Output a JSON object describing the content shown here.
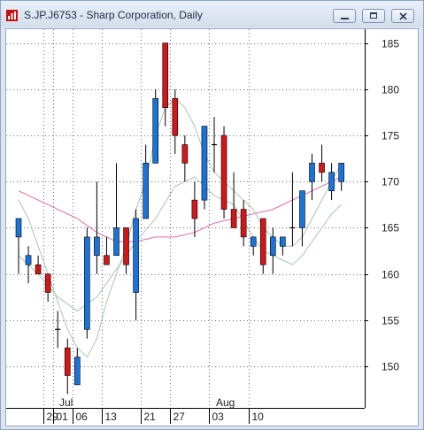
{
  "window": {
    "title": "S.JP.J6753 - Sharp Corporation, Daily",
    "controls": {
      "minimize": "minimize-icon",
      "restore": "restore-icon",
      "close": "close-icon"
    }
  },
  "colors": {
    "up": "#1a73d9",
    "down": "#d01818",
    "ma_short": "#a8c8b0",
    "ma_long": "#e06aa8"
  },
  "chart_data": {
    "type": "candlestick",
    "y_ticks": [
      150,
      155,
      160,
      165,
      170,
      175,
      180,
      185
    ],
    "ylim": [
      145.5,
      186.5
    ],
    "x_tick_labels": [
      "29",
      "01",
      "06",
      "13",
      "21",
      "27",
      "03",
      "10"
    ],
    "x_tick_indices": [
      3,
      4,
      6,
      9,
      13,
      16,
      20,
      24
    ],
    "month_labels": [
      {
        "label": "Jul",
        "index": 5
      },
      {
        "label": "Aug",
        "index": 21
      }
    ],
    "candles": [
      {
        "open": 164.0,
        "high": 166.0,
        "low": 160.0,
        "close": 166.0
      },
      {
        "open": 161.0,
        "high": 163.0,
        "low": 159.0,
        "close": 162.0
      },
      {
        "open": 161.0,
        "high": 162.0,
        "low": 160.0,
        "close": 160.0
      },
      {
        "open": 160.0,
        "high": 160.0,
        "low": 157.0,
        "close": 158.0
      },
      {
        "open": 154.0,
        "high": 156.0,
        "low": 152.0,
        "close": 154.0
      },
      {
        "open": 152.0,
        "high": 153.0,
        "low": 147.0,
        "close": 149.0
      },
      {
        "open": 148.0,
        "high": 152.0,
        "low": 148.0,
        "close": 151.0
      },
      {
        "open": 154.0,
        "high": 165.0,
        "low": 153.0,
        "close": 164.0
      },
      {
        "open": 162.0,
        "high": 170.0,
        "low": 160.0,
        "close": 164.0
      },
      {
        "open": 162.0,
        "high": 164.0,
        "low": 161.0,
        "close": 161.0
      },
      {
        "open": 162.0,
        "high": 172.0,
        "low": 162.0,
        "close": 165.0
      },
      {
        "open": 165.0,
        "high": 165.0,
        "low": 160.0,
        "close": 161.0
      },
      {
        "open": 158.0,
        "high": 167.0,
        "low": 155.0,
        "close": 166.0
      },
      {
        "open": 166.0,
        "high": 174.0,
        "low": 166.0,
        "close": 172.0
      },
      {
        "open": 172.0,
        "high": 180.0,
        "low": 172.0,
        "close": 179.0
      },
      {
        "open": 185.0,
        "high": 185.0,
        "low": 176.0,
        "close": 178.0
      },
      {
        "open": 179.0,
        "high": 180.0,
        "low": 173.0,
        "close": 175.0
      },
      {
        "open": 174.0,
        "high": 175.0,
        "low": 170.0,
        "close": 172.0
      },
      {
        "open": 168.0,
        "high": 170.0,
        "low": 164.0,
        "close": 166.0
      },
      {
        "open": 168.0,
        "high": 176.0,
        "low": 167.0,
        "close": 176.0
      },
      {
        "open": 174.0,
        "high": 177.0,
        "low": 171.0,
        "close": 174.0
      },
      {
        "open": 175.0,
        "high": 176.0,
        "low": 166.0,
        "close": 167.0
      },
      {
        "open": 167.0,
        "high": 171.0,
        "low": 165.0,
        "close": 165.0
      },
      {
        "open": 167.0,
        "high": 168.0,
        "low": 163.0,
        "close": 164.0
      },
      {
        "open": 163.0,
        "high": 164.0,
        "low": 162.0,
        "close": 164.0
      },
      {
        "open": 166.0,
        "high": 166.0,
        "low": 160.0,
        "close": 161.0
      },
      {
        "open": 162.0,
        "high": 165.0,
        "low": 160.0,
        "close": 164.0
      },
      {
        "open": 163.0,
        "high": 164.0,
        "low": 162.0,
        "close": 164.0
      },
      {
        "open": 165.0,
        "high": 171.0,
        "low": 163.0,
        "close": 165.0
      },
      {
        "open": 165.0,
        "high": 169.0,
        "low": 163.0,
        "close": 169.0
      },
      {
        "open": 170.0,
        "high": 173.0,
        "low": 168.0,
        "close": 172.0
      },
      {
        "open": 172.0,
        "high": 174.0,
        "low": 170.0,
        "close": 171.0
      },
      {
        "open": 169.0,
        "high": 172.0,
        "low": 168.0,
        "close": 171.0
      },
      {
        "open": 170.0,
        "high": 172.0,
        "low": 169.0,
        "close": 172.0
      }
    ],
    "series": [
      {
        "type": "line",
        "values": [
          [
            0,
            168.0
          ],
          [
            1,
            166.0
          ],
          [
            2,
            163.0
          ],
          [
            3,
            160.0
          ],
          [
            4,
            157.0
          ],
          [
            5,
            154.0
          ],
          [
            6,
            152.0
          ],
          [
            7,
            151.0
          ],
          [
            8,
            153.0
          ],
          [
            9,
            157.0
          ],
          [
            10,
            160.0
          ],
          [
            11,
            163.0
          ],
          [
            12,
            167.0
          ],
          [
            13,
            170.0
          ],
          [
            14,
            175.0
          ],
          [
            15,
            178.0
          ],
          [
            16,
            179.0
          ],
          [
            17,
            178.0
          ],
          [
            18,
            176.0
          ],
          [
            19,
            173.0
          ],
          [
            20,
            171.0
          ],
          [
            21,
            170.0
          ],
          [
            22,
            169.0
          ],
          [
            23,
            168.0
          ],
          [
            24,
            167.0
          ],
          [
            25,
            165.0
          ],
          [
            26,
            164.0
          ],
          [
            27,
            163.0
          ],
          [
            28,
            163.0
          ],
          [
            29,
            164.0
          ],
          [
            30,
            166.0
          ],
          [
            31,
            168.0
          ],
          [
            32,
            170.0
          ],
          [
            33,
            172.0
          ]
        ]
      },
      {
        "type": "line",
        "values": [
          [
            0,
            169.0
          ],
          [
            2,
            168.0
          ],
          [
            4,
            167.0
          ],
          [
            6,
            166.0
          ],
          [
            8,
            164.5
          ],
          [
            10,
            163.5
          ],
          [
            12,
            163.5
          ],
          [
            14,
            164.0
          ],
          [
            16,
            164.0
          ],
          [
            18,
            164.5
          ],
          [
            20,
            165.5
          ],
          [
            22,
            166.0
          ],
          [
            24,
            166.5
          ],
          [
            26,
            167.0
          ],
          [
            28,
            168.0
          ],
          [
            30,
            169.0
          ],
          [
            32,
            170.0
          ],
          [
            33,
            170.5
          ]
        ]
      },
      {
        "type": "line",
        "values": [
          [
            0,
            162.0
          ],
          [
            2,
            160.0
          ],
          [
            4,
            157.5
          ],
          [
            6,
            156.0
          ],
          [
            8,
            157.5
          ],
          [
            10,
            160.5
          ],
          [
            12,
            163.5
          ],
          [
            14,
            166.0
          ],
          [
            16,
            169.5
          ],
          [
            18,
            170.5
          ],
          [
            20,
            168.5
          ],
          [
            22,
            167.5
          ],
          [
            24,
            164.0
          ],
          [
            25,
            162.5
          ],
          [
            26,
            162.0
          ],
          [
            27,
            161.5
          ],
          [
            28,
            161.0
          ],
          [
            29,
            162.0
          ],
          [
            30,
            163.5
          ],
          [
            31,
            165.0
          ],
          [
            32,
            166.5
          ],
          [
            33,
            167.5
          ]
        ]
      }
    ]
  }
}
